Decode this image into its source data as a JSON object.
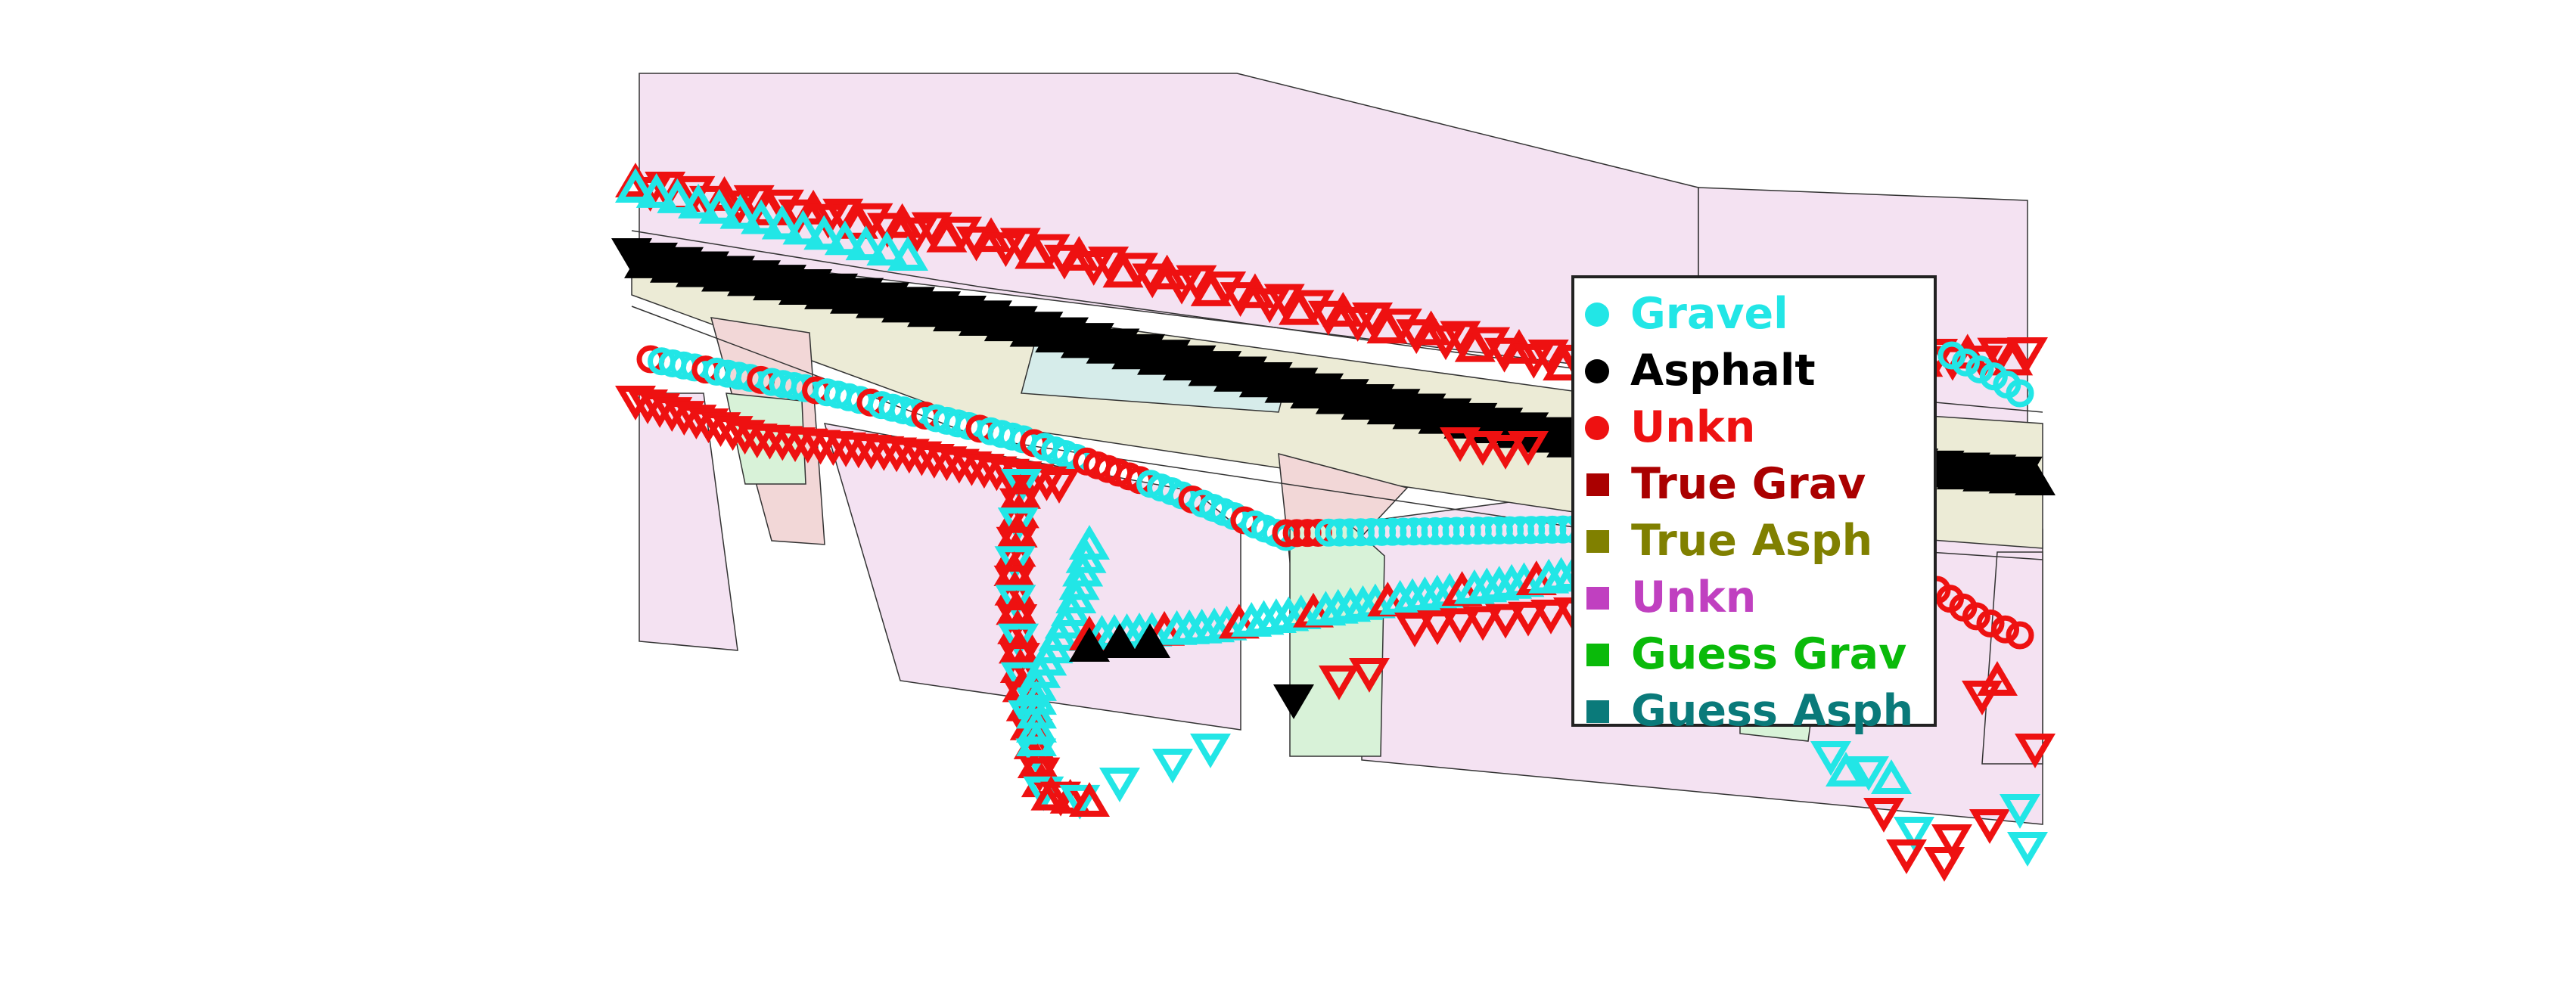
{
  "legend": {
    "items": [
      {
        "label": "Gravel",
        "marker": "circle",
        "color": "#22e6e6",
        "name": "legend-item-gravel"
      },
      {
        "label": "Asphalt",
        "marker": "circle",
        "color": "#000000",
        "name": "legend-item-asphalt"
      },
      {
        "label": "Unkn",
        "marker": "circle",
        "color": "#ee1111",
        "name": "legend-item-unknown-observed"
      },
      {
        "label": "True Grav",
        "marker": "square",
        "color": "#aa0000",
        "name": "legend-item-true-gravel"
      },
      {
        "label": "True Asph",
        "marker": "square",
        "color": "#808000",
        "name": "legend-item-true-asphalt"
      },
      {
        "label": "Unkn",
        "marker": "square",
        "color": "#c040c0",
        "name": "legend-item-unknown-true"
      },
      {
        "label": "Guess Grav",
        "marker": "square",
        "color": "#0aba0a",
        "name": "legend-item-guess-gravel"
      },
      {
        "label": "Guess Asph",
        "marker": "square",
        "color": "#0a7a7a",
        "name": "legend-item-guess-asphalt"
      }
    ]
  },
  "colors": {
    "gravel": "#22e6e6",
    "asphalt": "#000000",
    "unknown": "#ee1111",
    "true_gravel_fill": "#f2d7d7",
    "true_asphalt_fill": "#ecebd6",
    "unknown_region_fill": "#f4e2f2",
    "guess_gravel_fill": "#d8f2d8",
    "guess_asphalt_fill": "#d6ecea"
  }
}
